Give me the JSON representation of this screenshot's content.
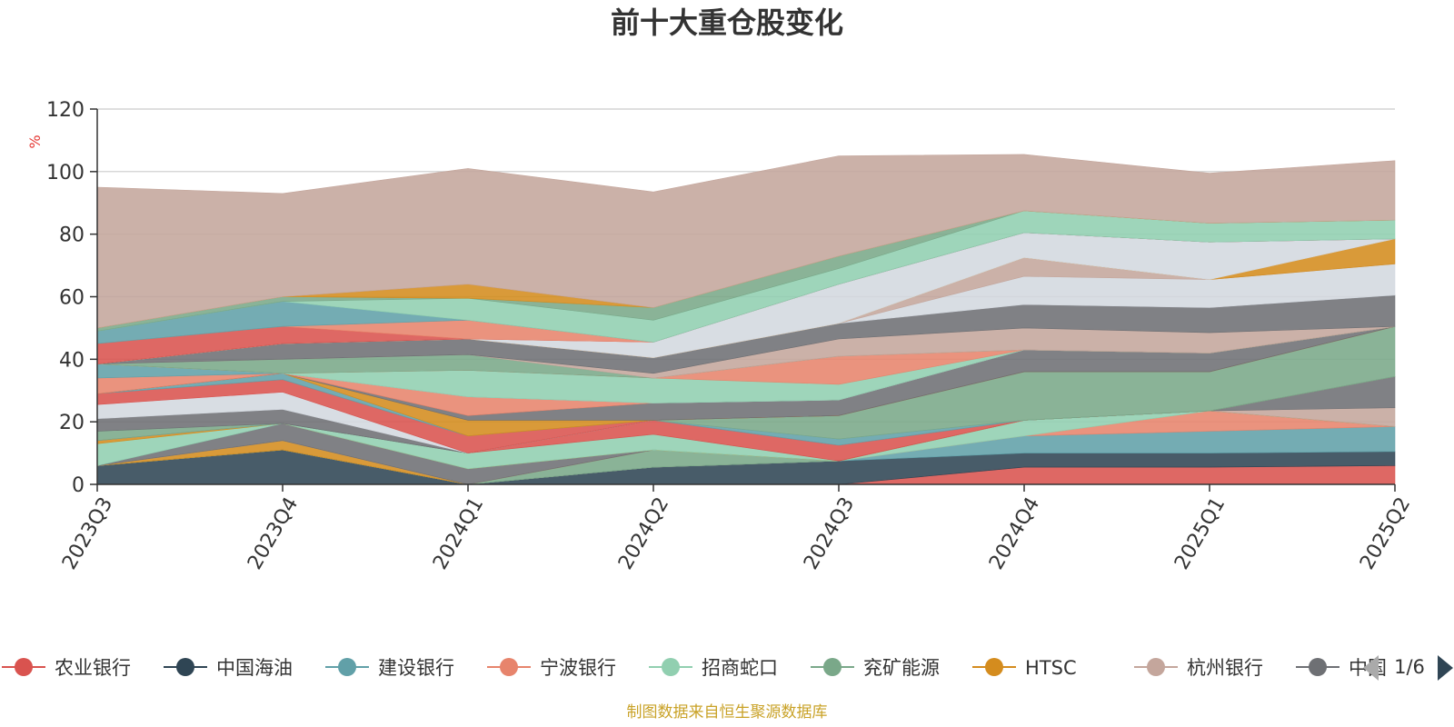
{
  "chart_data": {
    "type": "area",
    "title": "前十大重仓股变化",
    "ylabel": "%",
    "ylim": [
      0,
      120
    ],
    "yticks": [
      0,
      20,
      40,
      60,
      80,
      100,
      120
    ],
    "x": [
      "2023Q3",
      "2023Q4",
      "2024Q1",
      "2024Q2",
      "2024Q3",
      "2024Q4",
      "2025Q1",
      "2025Q2"
    ],
    "grid": true,
    "stacked": true,
    "series": [
      {
        "name": "农业银行",
        "color": "#d9534f",
        "values": [
          0,
          0,
          0,
          0,
          0,
          5.5,
          5.5,
          6
        ]
      },
      {
        "name": "中国海油",
        "color": "#2f4554",
        "values": [
          6,
          11,
          0,
          5.5,
          7.5,
          4.5,
          4.5,
          4.5
        ]
      },
      {
        "name": "建设银行",
        "color": "#61a0a8",
        "values": [
          0,
          0,
          0,
          0,
          0,
          5.5,
          7,
          8
        ]
      },
      {
        "name": "宁波银行",
        "color": "#e7846c",
        "values": [
          0,
          0,
          0,
          0,
          0,
          0,
          6.5,
          0
        ]
      },
      {
        "name": "招商蛇口",
        "color": "#91cfb0",
        "values": [
          0,
          0,
          0,
          0,
          0,
          5,
          0,
          0
        ]
      },
      {
        "name": "兖矿能源",
        "color": "#7aa889",
        "values": [
          0,
          0,
          0,
          5.5,
          0,
          0,
          0,
          0
        ]
      },
      {
        "name": "HTSC",
        "color": "#d48c1e",
        "values": [
          0,
          3,
          0,
          0,
          0,
          0,
          0,
          0
        ]
      },
      {
        "name": "杭州银行",
        "color": "#c4a69c",
        "values": [
          0,
          0,
          0,
          0,
          0,
          0,
          0,
          6
        ]
      },
      {
        "name": "中国平安",
        "color": "#6e7074",
        "values": [
          0,
          5.5,
          5,
          0,
          0,
          0,
          0,
          10
        ]
      },
      {
        "name": "",
        "color": "#91cfb0",
        "values": [
          7,
          0,
          0,
          0,
          0,
          0,
          0,
          0
        ]
      },
      {
        "name": "",
        "color": "#d48c1e",
        "values": [
          1,
          0,
          0,
          0,
          0,
          0,
          0,
          0
        ]
      },
      {
        "name": "",
        "color": "#91cfb0",
        "values": [
          0,
          0,
          5,
          5,
          0,
          0,
          0,
          0
        ]
      },
      {
        "name": "",
        "color": "#d9534f",
        "values": [
          0,
          0,
          0,
          4.5,
          5,
          0,
          0,
          0
        ]
      },
      {
        "name": "",
        "color": "#61a0a8",
        "values": [
          0,
          0,
          0,
          0,
          2,
          0,
          0,
          0
        ]
      },
      {
        "name": "",
        "color": "#7aa889",
        "values": [
          3,
          0,
          0,
          0,
          7.5,
          15.5,
          12.5,
          16
        ]
      },
      {
        "name": "",
        "color": "#6e7074",
        "values": [
          4,
          4.5,
          0,
          0,
          0,
          0,
          0,
          0
        ]
      },
      {
        "name": "",
        "color": "#d3d8df",
        "values": [
          4.5,
          5.5,
          0,
          0,
          0,
          0,
          0,
          0
        ]
      },
      {
        "name": "",
        "color": "#d9534f",
        "values": [
          3.5,
          4,
          5.5,
          0,
          0,
          0,
          0,
          0
        ]
      },
      {
        "name": "",
        "color": "#61a0a8",
        "values": [
          0,
          2,
          0,
          0,
          0,
          0,
          0,
          0
        ]
      },
      {
        "name": "",
        "color": "#d48c1e",
        "values": [
          0,
          0,
          5,
          0,
          0,
          0,
          0,
          0
        ]
      },
      {
        "name": "",
        "color": "#6e7074",
        "values": [
          0,
          0,
          1.5,
          5.5,
          5,
          7,
          6,
          0
        ]
      },
      {
        "name": "",
        "color": "#e7846c",
        "values": [
          5,
          0,
          6,
          0,
          0,
          0,
          0,
          0
        ]
      },
      {
        "name": "",
        "color": "#61a0a8",
        "values": [
          4.5,
          0,
          0,
          0,
          0,
          0,
          0,
          0
        ]
      },
      {
        "name": "",
        "color": "#d3d8df",
        "values": [
          0,
          0,
          0,
          0,
          0,
          0,
          0,
          0
        ]
      },
      {
        "name": "",
        "color": "#91cfb0",
        "values": [
          0,
          0,
          8.5,
          8,
          5,
          0,
          0,
          0
        ]
      },
      {
        "name": "",
        "color": "#e7846c",
        "values": [
          0,
          0,
          0,
          0,
          9,
          0,
          0,
          0
        ]
      },
      {
        "name": "",
        "color": "#7aa889",
        "values": [
          0,
          4.5,
          5,
          0,
          0,
          0,
          0,
          0
        ]
      },
      {
        "name": "",
        "color": "#c4a69c",
        "values": [
          0,
          0,
          0,
          1.5,
          5.5,
          7,
          6.5,
          0
        ]
      },
      {
        "name": "",
        "color": "#6e7074",
        "values": [
          0,
          5,
          5,
          5,
          5,
          7.5,
          8,
          10
        ]
      },
      {
        "name": "",
        "color": "#d3d8df",
        "values": [
          0,
          0,
          0,
          0,
          0,
          9,
          9,
          10
        ]
      },
      {
        "name": "",
        "color": "#c4a69c",
        "values": [
          0,
          0,
          0,
          0,
          0,
          6,
          0,
          0
        ]
      },
      {
        "name": "",
        "color": "#d48c1e",
        "values": [
          0,
          0,
          0,
          0,
          0,
          0,
          0,
          8
        ]
      },
      {
        "name": "",
        "color": "#d3d8df",
        "values": [
          0,
          0,
          0,
          5,
          12.5,
          8,
          12,
          0
        ]
      },
      {
        "name": "",
        "color": "#d9534f",
        "values": [
          6.5,
          5.5,
          0,
          0,
          0,
          0,
          0,
          0
        ]
      },
      {
        "name": "",
        "color": "#e7846c",
        "values": [
          0,
          0,
          6,
          0,
          0,
          0,
          0,
          0
        ]
      },
      {
        "name": "",
        "color": "#61a0a8",
        "values": [
          4,
          8,
          0,
          0,
          0,
          0,
          0,
          0
        ]
      },
      {
        "name": "",
        "color": "#91cfb0",
        "values": [
          0,
          0,
          7,
          7,
          5,
          7,
          6,
          6
        ]
      },
      {
        "name": "",
        "color": "#7aa889",
        "values": [
          1,
          1.5,
          0,
          4,
          4,
          0,
          0,
          0
        ]
      },
      {
        "name": "",
        "color": "#d48c1e",
        "values": [
          0,
          0,
          4.5,
          0,
          0,
          0,
          0,
          0
        ]
      },
      {
        "name": "",
        "color": "#c4a69c",
        "values": [
          45,
          33,
          37,
          37,
          32,
          18,
          16,
          19
        ]
      }
    ]
  },
  "legend": {
    "page": "1/6",
    "items": [
      {
        "label": "农业银行",
        "color": "#d9534f"
      },
      {
        "label": "中国海油",
        "color": "#2f4554"
      },
      {
        "label": "建设银行",
        "color": "#61a0a8"
      },
      {
        "label": "宁波银行",
        "color": "#e7846c"
      },
      {
        "label": "招商蛇口",
        "color": "#91cfb0"
      },
      {
        "label": "兖矿能源",
        "color": "#7aa889"
      },
      {
        "label": "HTSC",
        "color": "#d48c1e"
      },
      {
        "label": "杭州银行",
        "color": "#c4a69c"
      },
      {
        "label": "中国",
        "color": "#6e7074"
      }
    ]
  },
  "footer": {
    "source": "制图数据来自恒生聚源数据库"
  }
}
